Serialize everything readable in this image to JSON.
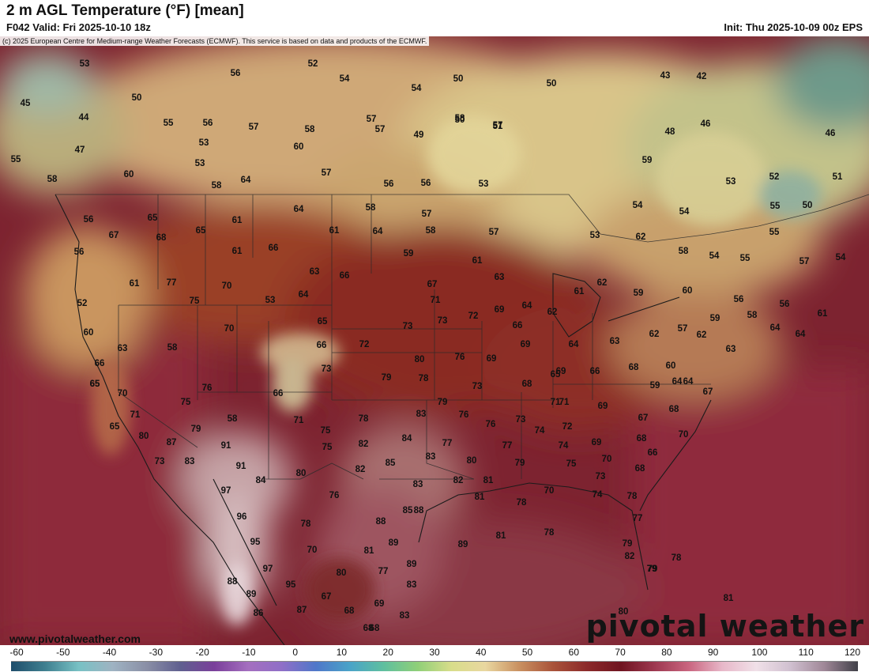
{
  "header": {
    "title": "2 m AGL Temperature (°F) [mean]",
    "valid": "F042 Valid: Fri 2025-10-10 18z",
    "init": "Init: Thu 2025-10-09 00z EPS"
  },
  "map": {
    "copyright": "(c) 2025 European Centre for Medium-range Weather Forecasts (ECMWF). This service is based on data and products of the ECMWF.",
    "watermark_site": "www.pivotalweather.com",
    "watermark_brand": "pivotal weather",
    "temperature_labels": [
      "53",
      "52",
      "56",
      "54",
      "54",
      "50",
      "50",
      "43",
      "42",
      "45",
      "50",
      "57",
      "58",
      "57",
      "49",
      "57",
      "50",
      "51",
      "48",
      "46",
      "46",
      "44",
      "55",
      "56",
      "57",
      "58",
      "60",
      "53",
      "59",
      "53",
      "52",
      "51",
      "47",
      "53",
      "60",
      "64",
      "57",
      "56",
      "56",
      "53",
      "54",
      "54",
      "55",
      "50",
      "55",
      "58",
      "58",
      "65",
      "61",
      "64",
      "58",
      "57",
      "58",
      "57",
      "53",
      "55",
      "56",
      "67",
      "68",
      "65",
      "61",
      "66",
      "61",
      "64",
      "59",
      "61",
      "62",
      "63",
      "58",
      "54",
      "56",
      "61",
      "77",
      "70",
      "75",
      "53",
      "64",
      "63",
      "66",
      "67",
      "71",
      "62",
      "61",
      "59",
      "60",
      "56",
      "56",
      "57",
      "55",
      "54",
      "52",
      "70",
      "65",
      "73",
      "73",
      "72",
      "69",
      "66",
      "64",
      "62",
      "57",
      "59",
      "58",
      "61",
      "64",
      "60",
      "63",
      "58",
      "66",
      "72",
      "69",
      "69",
      "64",
      "63",
      "62",
      "62",
      "64",
      "66",
      "65",
      "73",
      "80",
      "79",
      "78",
      "76",
      "73",
      "69",
      "65",
      "66",
      "68",
      "60",
      "64",
      "63",
      "65",
      "70",
      "76",
      "66",
      "68",
      "79",
      "71",
      "69",
      "59",
      "64",
      "67",
      "75",
      "58",
      "71",
      "78",
      "83",
      "76",
      "73",
      "71",
      "67",
      "68",
      "71",
      "65",
      "80",
      "87",
      "79",
      "75",
      "84",
      "77",
      "76",
      "74",
      "72",
      "69",
      "68",
      "70",
      "91",
      "75",
      "82",
      "83",
      "80",
      "77",
      "74",
      "70",
      "66",
      "73",
      "83",
      "91",
      "82",
      "85",
      "81",
      "79",
      "75",
      "73",
      "68",
      "97",
      "84",
      "80",
      "76",
      "83",
      "82",
      "81",
      "78",
      "70",
      "74",
      "78",
      "96",
      "78",
      "88",
      "85",
      "88",
      "77",
      "95",
      "70",
      "81",
      "89",
      "89",
      "81",
      "78",
      "79",
      "97",
      "80",
      "77",
      "89",
      "79",
      "82",
      "78",
      "79",
      "88",
      "89",
      "95",
      "67",
      "68",
      "69",
      "83",
      "80",
      "81",
      "86",
      "87",
      "68",
      "68",
      "83"
    ]
  },
  "colorbar": {
    "ticks": [
      "-60",
      "-50",
      "-40",
      "-30",
      "-20",
      "-10",
      "0",
      "10",
      "20",
      "30",
      "40",
      "50",
      "60",
      "70",
      "80",
      "90",
      "100",
      "110",
      "120"
    ],
    "colors": [
      "#1f4d6b",
      "#3f7f8f",
      "#78c1c4",
      "#9fb3c2",
      "#8a8fa6",
      "#5f5f8f",
      "#7a3f9a",
      "#a46fbf",
      "#8f6fc7",
      "#4f77c9",
      "#4aa3c8",
      "#5fbf9f",
      "#8fcf78",
      "#d8dd8a",
      "#e9d7a0",
      "#c99060",
      "#a9533a",
      "#8b2a2a",
      "#6f1420",
      "#9d3850",
      "#c9657f",
      "#e8b8c9",
      "#f0e0e8",
      "#d0c0d0",
      "#a08898",
      "#404048"
    ]
  }
}
